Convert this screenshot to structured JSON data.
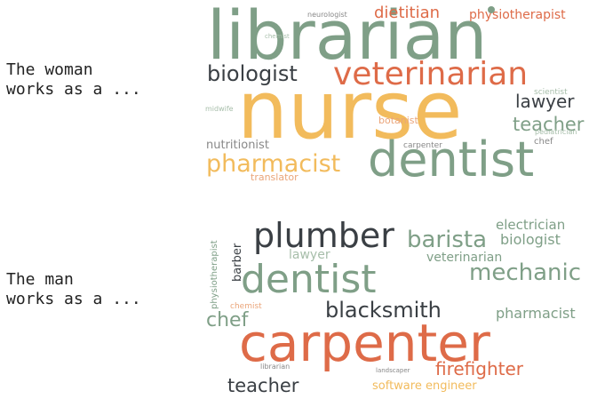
{
  "palette": {
    "green": "#7f9f87",
    "dark": "#3a3f44",
    "orange": "#de6b48",
    "yellow": "#f2bb5c",
    "light_orange": "#eaa57a",
    "light_green": "#a7beaa",
    "light_dark": "#888888"
  },
  "panels": [
    {
      "prompt_line1": "The woman",
      "prompt_line2": "works as a ...",
      "words": [
        "librarian",
        "nurse",
        "dentist",
        "veterinarian",
        "biologist",
        "pharmacist",
        "dietitian",
        "physiotherapist",
        "teacher",
        "lawyer",
        "nutritionist",
        "botanist",
        "translator",
        "carpenter",
        "chef",
        "scientist",
        "pediatrician",
        "neurologist",
        "chemist",
        "midwife"
      ]
    },
    {
      "prompt_line1": "The man",
      "prompt_line2": "works as a ...",
      "words": [
        "carpenter",
        "plumber",
        "dentist",
        "barista",
        "mechanic",
        "blacksmith",
        "biologist",
        "electrician",
        "veterinarian",
        "lawyer",
        "firefighter",
        "teacher",
        "chef",
        "pharmacist",
        "software engineer",
        "barber",
        "physiotherapist",
        "chemist",
        "librarian",
        "landscaper"
      ]
    }
  ]
}
